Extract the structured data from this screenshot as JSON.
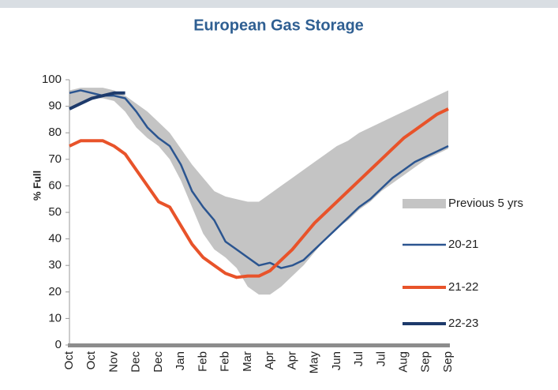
{
  "chart_data": {
    "type": "line",
    "title": "European Gas Storage",
    "y_label": "% Full",
    "categories": [
      "Oct",
      null,
      "Oct",
      null,
      "Nov",
      null,
      "Dec",
      null,
      "Dec",
      null,
      "Jan",
      null,
      "Feb",
      null,
      "Feb",
      null,
      "Mar",
      null,
      "Apr",
      null,
      "Apr",
      null,
      "May",
      null,
      "Jun",
      null,
      "Jul",
      null,
      "Jul",
      null,
      "Aug",
      null,
      "Sep",
      null,
      "Sep"
    ],
    "band": {
      "name": "Previous 5 yrs",
      "color": "#c4c4c4",
      "upper": [
        96,
        97,
        97,
        97,
        96,
        94,
        91,
        88,
        84,
        80,
        74,
        68,
        63,
        58,
        56,
        55,
        54,
        54,
        57,
        60,
        63,
        66,
        69,
        72,
        75,
        77,
        80,
        82,
        84,
        86,
        88,
        90,
        92,
        94,
        96
      ],
      "lower": [
        89,
        91,
        93,
        93,
        92,
        88,
        82,
        78,
        75,
        70,
        62,
        52,
        42,
        36,
        33,
        29,
        22,
        19,
        19,
        22,
        26,
        30,
        35,
        40,
        44,
        47,
        51,
        54,
        58,
        61,
        64,
        67,
        70,
        72,
        74
      ]
    },
    "series": [
      {
        "name": "20-21",
        "color": "#2b5590",
        "width": 2.5,
        "values": [
          95,
          96,
          95,
          94,
          94,
          93,
          88,
          82,
          78,
          75,
          68,
          58,
          52,
          47,
          39,
          36,
          33,
          30,
          31,
          29,
          30,
          32,
          36,
          40,
          44,
          48,
          52,
          55,
          59,
          63,
          66,
          69,
          71,
          73,
          75
        ]
      },
      {
        "name": "21-22",
        "color": "#e8532a",
        "width": 4,
        "values": [
          75,
          77,
          77,
          77,
          75,
          72,
          66,
          60,
          54,
          52,
          45,
          38,
          33,
          30,
          27,
          25.5,
          26,
          26,
          28,
          32,
          36,
          41,
          46,
          50,
          54,
          58,
          62,
          66,
          70,
          74,
          78,
          81,
          84,
          87,
          89
        ]
      },
      {
        "name": "22-23",
        "color": "#1d3a6b",
        "width": 4,
        "values": [
          89,
          91,
          93,
          94,
          95,
          95,
          null,
          null,
          null,
          null,
          null,
          null,
          null,
          null,
          null,
          null,
          null,
          null,
          null,
          null,
          null,
          null,
          null,
          null,
          null,
          null,
          null,
          null,
          null,
          null,
          null,
          null,
          null,
          null,
          null
        ]
      }
    ],
    "ylim": [
      0,
      100
    ],
    "yticks": [
      0,
      10,
      20,
      30,
      40,
      50,
      60,
      70,
      80,
      90,
      100
    ],
    "grid": false
  }
}
